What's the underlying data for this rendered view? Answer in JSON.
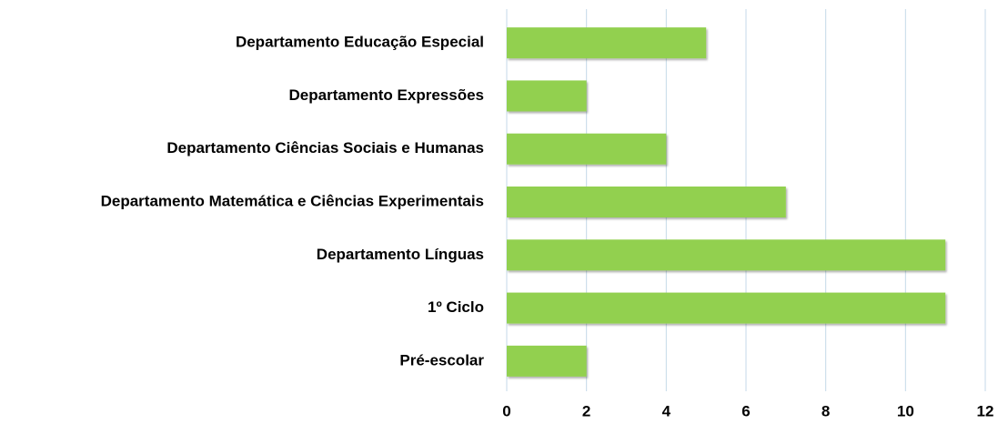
{
  "chart_data": {
    "type": "barh",
    "categories": [
      "Departamento Educação Especial",
      "Departamento Expressões",
      "Departamento Ciências Sociais e Humanas",
      "Departamento Matemática e Ciências Experimentais",
      "Departamento Línguas",
      "1º Ciclo",
      "Pré-escolar"
    ],
    "values": [
      5,
      2,
      4,
      7,
      11,
      11,
      2
    ],
    "color": "#92d050",
    "xlim": [
      0,
      12
    ],
    "xticks": [
      0,
      2,
      4,
      6,
      8,
      10,
      12
    ],
    "grid": true
  }
}
